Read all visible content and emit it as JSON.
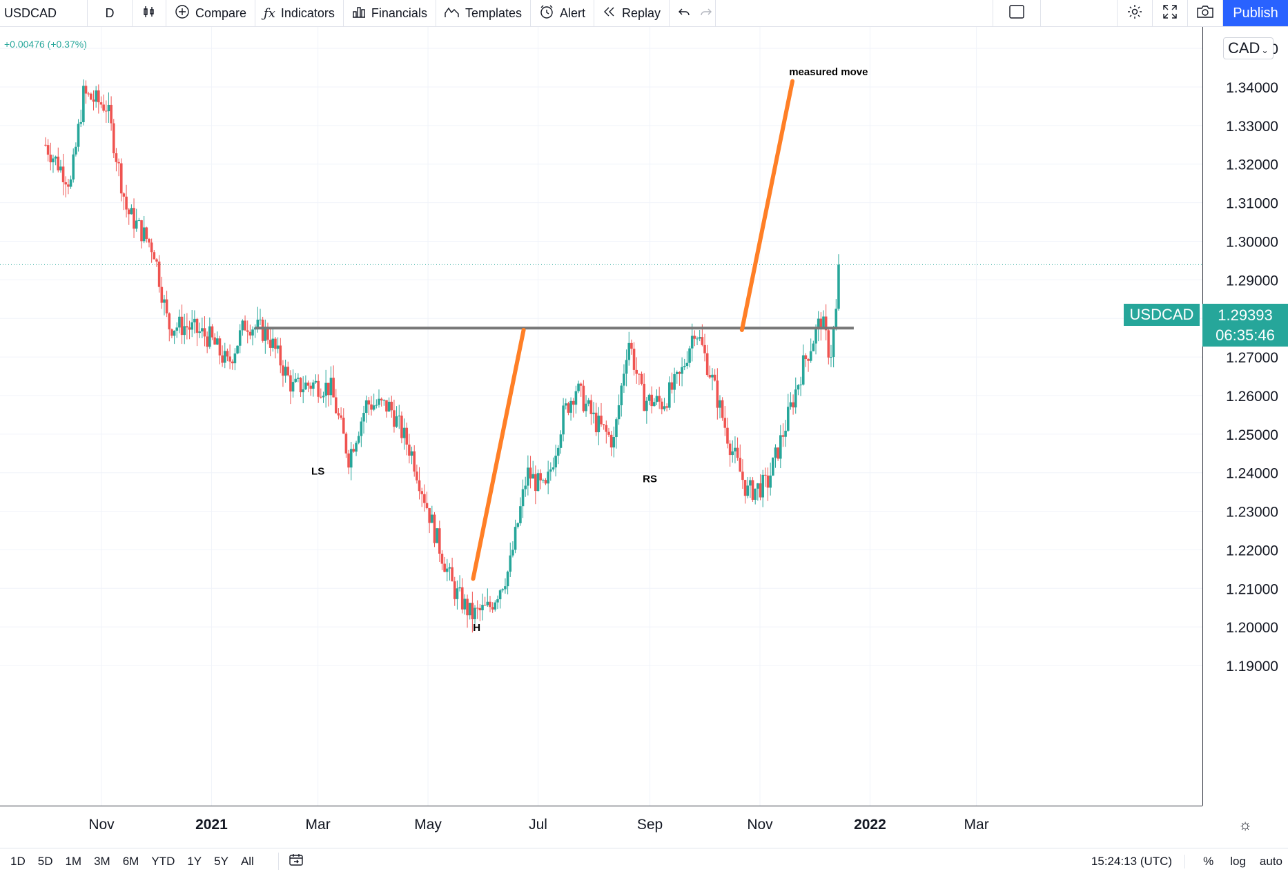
{
  "toolbar": {
    "symbol": "USDCAD",
    "interval": "D",
    "compare": "Compare",
    "indicators": "Indicators",
    "financials": "Financials",
    "templates": "Templates",
    "alert": "Alert",
    "replay": "Replay",
    "publish": "Publish",
    "icons": [
      "candles-icon",
      "plus-circle-icon",
      "fx-icon",
      "bars-icon",
      "templates-icon",
      "alarm-clock-icon",
      "replay-icon",
      "undo-icon",
      "redo-icon",
      "layout-square-icon",
      "gear-icon",
      "fullscreen-icon",
      "camera-icon"
    ]
  },
  "header": {
    "change": "+0.00476 (+0.37%)"
  },
  "currency": "CAD",
  "last": {
    "symbol": "USDCAD",
    "price": "1.29393",
    "countdown": "06:35:46"
  },
  "bottom": {
    "ranges": [
      "1D",
      "5D",
      "1M",
      "3M",
      "6M",
      "YTD",
      "1Y",
      "5Y",
      "All"
    ],
    "time": "15:24:13 (UTC)",
    "percent": "%",
    "log": "log",
    "auto": "auto"
  },
  "colors": {
    "up": "#26a69a",
    "down": "#ef5350",
    "neckline": "#777777",
    "measure": "#ff7f26",
    "accent": "#2962ff"
  },
  "chart_data": {
    "type": "candlestick",
    "symbol": "USDCAD",
    "interval": "D",
    "y_ticks": [
      "1.35000",
      "1.34000",
      "1.33000",
      "1.32000",
      "1.31000",
      "1.30000",
      "1.29000",
      "1.28000",
      "1.27000",
      "1.26000",
      "1.25000",
      "1.24000",
      "1.23000",
      "1.22000",
      "1.21000",
      "1.20000",
      "1.19000"
    ],
    "x_ticks": [
      "Nov",
      "2021",
      "Mar",
      "May",
      "Jul",
      "Sep",
      "Nov",
      "2022",
      "Mar"
    ],
    "ylim": [
      1.1875,
      1.354
    ],
    "trend_points": [
      [
        "2020-10-01",
        1.325
      ],
      [
        "2020-10-15",
        1.315
      ],
      [
        "2020-10-22",
        1.338
      ],
      [
        "2020-11-04",
        1.335
      ],
      [
        "2020-11-15",
        1.308
      ],
      [
        "2020-11-30",
        1.298
      ],
      [
        "2020-12-08",
        1.278
      ],
      [
        "2020-12-18",
        1.278
      ],
      [
        "2020-12-31",
        1.275
      ],
      [
        "2021-01-10",
        1.268
      ],
      [
        "2021-01-20",
        1.279
      ],
      [
        "2021-02-01",
        1.276
      ],
      [
        "2021-02-15",
        1.262
      ],
      [
        "2021-02-26",
        1.263
      ],
      [
        "2021-03-08",
        1.262
      ],
      [
        "2021-03-18",
        1.244
      ],
      [
        "2021-03-28",
        1.258
      ],
      [
        "2021-04-10",
        1.257
      ],
      [
        "2021-04-22",
        1.245
      ],
      [
        "2021-05-05",
        1.224
      ],
      [
        "2021-05-15",
        1.21
      ],
      [
        "2021-05-25",
        1.203
      ],
      [
        "2021-06-04",
        1.205
      ],
      [
        "2021-06-15",
        1.215
      ],
      [
        "2021-06-25",
        1.24
      ],
      [
        "2021-07-05",
        1.235
      ],
      [
        "2021-07-15",
        1.255
      ],
      [
        "2021-07-22",
        1.262
      ],
      [
        "2021-08-02",
        1.253
      ],
      [
        "2021-08-12",
        1.248
      ],
      [
        "2021-08-20",
        1.275
      ],
      [
        "2021-08-28",
        1.259
      ],
      [
        "2021-09-08",
        1.258
      ],
      [
        "2021-09-18",
        1.265
      ],
      [
        "2021-09-26",
        1.278
      ],
      [
        "2021-10-05",
        1.265
      ],
      [
        "2021-10-15",
        1.248
      ],
      [
        "2021-10-25",
        1.235
      ],
      [
        "2021-11-05",
        1.237
      ],
      [
        "2021-11-15",
        1.252
      ],
      [
        "2021-11-25",
        1.268
      ],
      [
        "2021-12-05",
        1.28
      ],
      [
        "2021-12-10",
        1.27
      ],
      [
        "2021-12-15",
        1.288
      ],
      [
        "2021-12-16",
        1.2939
      ]
    ],
    "neckline": {
      "y": 1.2775,
      "from": "2021-01-25",
      "to": "2021-12-23"
    },
    "measure_lines": [
      {
        "from": [
          "2021-05-26",
          1.2125
        ],
        "to": [
          "2021-06-23",
          1.277
        ]
      },
      {
        "from": [
          "2021-10-22",
          1.277
        ],
        "to": [
          "2021-11-19",
          1.3415
        ]
      }
    ],
    "annotations": [
      {
        "text": "LS",
        "date": "2021-03-01",
        "y": 1.2395
      },
      {
        "text": "H",
        "date": "2021-05-28",
        "y": 1.199
      },
      {
        "text": "RS",
        "date": "2021-09-01",
        "y": 1.2375
      },
      {
        "text": "measured move",
        "date": "2021-12-09",
        "y": 1.343
      }
    ],
    "last_price": 1.29393
  }
}
